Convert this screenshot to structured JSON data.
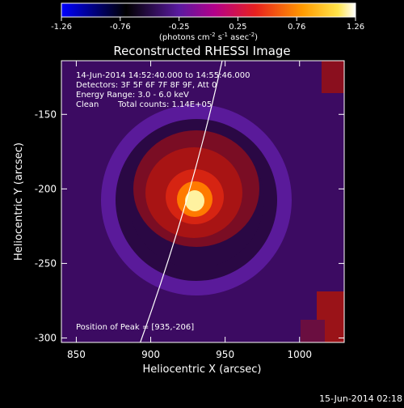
{
  "chart_data": {
    "type": "heatmap",
    "title": "Reconstructed RHESSI Image",
    "xlabel": "Heliocentric X (arcsec)",
    "ylabel": "Heliocentric Y (arcsec)",
    "xlim": [
      840,
      1030
    ],
    "ylim": [
      -303,
      -114
    ],
    "xticks": [
      850,
      900,
      950,
      1000
    ],
    "yticks": [
      -150,
      -200,
      -250,
      -300
    ],
    "colorbar": {
      "ticks": [
        "-1.26",
        "-0.76",
        "-0.25",
        "0.25",
        "0.76",
        "1.26"
      ],
      "label_main": "(photons cm",
      "label_exp1": "-2",
      "label_mid": " s",
      "label_exp2": "-1",
      "label_end": " asec",
      "label_exp3": "-2",
      "label_close": ")",
      "range": [
        -1.26,
        1.26
      ]
    },
    "annotations": {
      "time_range": "14-Jun-2014 14:52:40.000 to 14:55:46.000",
      "detectors": "Detectors: 3F 5F 6F 7F 8F 9F, Att 0",
      "energy": "Energy Range: 3.0 - 6.0 keV",
      "method": "Clean",
      "counts": "Total counts: 1.14E+05",
      "peak": "Position of Peak = [935,-206]"
    },
    "peak": [
      935,
      -206
    ],
    "limb_x_at_ylim": [
      893,
      948
    ],
    "footer_timestamp": "15-Jun-2014 02:18",
    "colors": {
      "axis": "#ffffff",
      "background": "#000000"
    }
  }
}
